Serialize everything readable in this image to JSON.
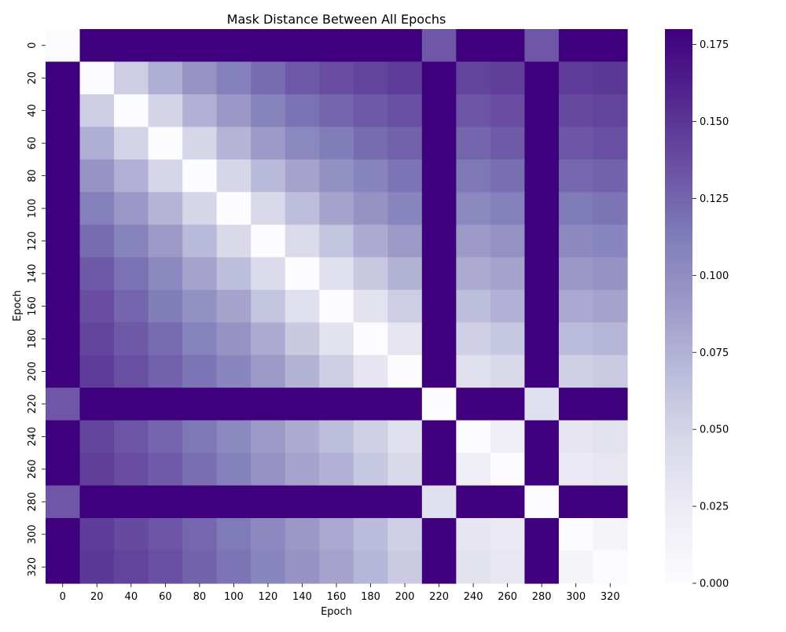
{
  "chart_data": {
    "type": "heatmap",
    "title": "Mask Distance Between All Epochs",
    "xlabel": "Epoch",
    "ylabel": "Epoch",
    "categories": [
      "0",
      "20",
      "40",
      "60",
      "80",
      "100",
      "120",
      "140",
      "160",
      "180",
      "200",
      "220",
      "240",
      "260",
      "280",
      "300",
      "320"
    ],
    "colormap": "Purples",
    "vmin": 0.0,
    "vmax": 0.18,
    "colorbar_ticks": [
      0.0,
      0.025,
      0.05,
      0.075,
      0.1,
      0.125,
      0.15,
      0.175
    ],
    "colorbar_tick_labels": [
      "0.000",
      "0.025",
      "0.050",
      "0.075",
      "0.100",
      "0.125",
      "0.150",
      "0.175"
    ],
    "values": [
      [
        0.0,
        0.18,
        0.18,
        0.18,
        0.18,
        0.18,
        0.18,
        0.18,
        0.18,
        0.18,
        0.18,
        0.132,
        0.18,
        0.18,
        0.132,
        0.18,
        0.18
      ],
      [
        0.18,
        0.0,
        0.055,
        0.078,
        0.095,
        0.11,
        0.121,
        0.131,
        0.137,
        0.142,
        0.146,
        0.18,
        0.142,
        0.145,
        0.18,
        0.146,
        0.148
      ],
      [
        0.18,
        0.055,
        0.0,
        0.05,
        0.075,
        0.092,
        0.107,
        0.118,
        0.125,
        0.131,
        0.136,
        0.18,
        0.133,
        0.137,
        0.18,
        0.139,
        0.142
      ],
      [
        0.18,
        0.078,
        0.05,
        0.0,
        0.048,
        0.073,
        0.09,
        0.104,
        0.112,
        0.121,
        0.127,
        0.18,
        0.125,
        0.13,
        0.18,
        0.133,
        0.136
      ],
      [
        0.18,
        0.095,
        0.075,
        0.048,
        0.0,
        0.048,
        0.07,
        0.085,
        0.098,
        0.108,
        0.117,
        0.18,
        0.115,
        0.12,
        0.18,
        0.124,
        0.127
      ],
      [
        0.18,
        0.11,
        0.092,
        0.073,
        0.048,
        0.0,
        0.046,
        0.067,
        0.084,
        0.096,
        0.106,
        0.18,
        0.104,
        0.11,
        0.18,
        0.114,
        0.117
      ],
      [
        0.18,
        0.121,
        0.107,
        0.09,
        0.07,
        0.046,
        0.0,
        0.045,
        0.062,
        0.079,
        0.091,
        0.18,
        0.091,
        0.097,
        0.18,
        0.103,
        0.106
      ],
      [
        0.18,
        0.131,
        0.118,
        0.104,
        0.085,
        0.067,
        0.045,
        0.0,
        0.038,
        0.058,
        0.074,
        0.18,
        0.079,
        0.085,
        0.18,
        0.092,
        0.096
      ],
      [
        0.18,
        0.137,
        0.125,
        0.112,
        0.098,
        0.084,
        0.062,
        0.038,
        0.0,
        0.035,
        0.055,
        0.18,
        0.067,
        0.075,
        0.18,
        0.081,
        0.085
      ],
      [
        0.18,
        0.142,
        0.131,
        0.121,
        0.108,
        0.096,
        0.079,
        0.058,
        0.035,
        0.0,
        0.032,
        0.18,
        0.053,
        0.06,
        0.18,
        0.068,
        0.072
      ],
      [
        0.18,
        0.146,
        0.136,
        0.127,
        0.117,
        0.106,
        0.091,
        0.074,
        0.055,
        0.032,
        0.0,
        0.18,
        0.038,
        0.046,
        0.18,
        0.053,
        0.057
      ],
      [
        0.132,
        0.18,
        0.18,
        0.18,
        0.18,
        0.18,
        0.18,
        0.18,
        0.18,
        0.18,
        0.18,
        0.0,
        0.18,
        0.18,
        0.038,
        0.18,
        0.18
      ],
      [
        0.18,
        0.142,
        0.133,
        0.125,
        0.115,
        0.104,
        0.091,
        0.079,
        0.067,
        0.053,
        0.038,
        0.18,
        0.0,
        0.022,
        0.18,
        0.032,
        0.036
      ],
      [
        0.18,
        0.145,
        0.137,
        0.13,
        0.12,
        0.11,
        0.097,
        0.085,
        0.075,
        0.06,
        0.046,
        0.18,
        0.022,
        0.0,
        0.18,
        0.027,
        0.031
      ],
      [
        0.132,
        0.18,
        0.18,
        0.18,
        0.18,
        0.18,
        0.18,
        0.18,
        0.18,
        0.18,
        0.18,
        0.038,
        0.18,
        0.18,
        0.0,
        0.18,
        0.18
      ],
      [
        0.18,
        0.146,
        0.139,
        0.133,
        0.124,
        0.114,
        0.103,
        0.092,
        0.081,
        0.068,
        0.053,
        0.18,
        0.032,
        0.027,
        0.18,
        0.0,
        0.012
      ],
      [
        0.18,
        0.148,
        0.142,
        0.136,
        0.127,
        0.117,
        0.106,
        0.096,
        0.085,
        0.072,
        0.057,
        0.18,
        0.036,
        0.031,
        0.18,
        0.012,
        0.0
      ]
    ]
  }
}
